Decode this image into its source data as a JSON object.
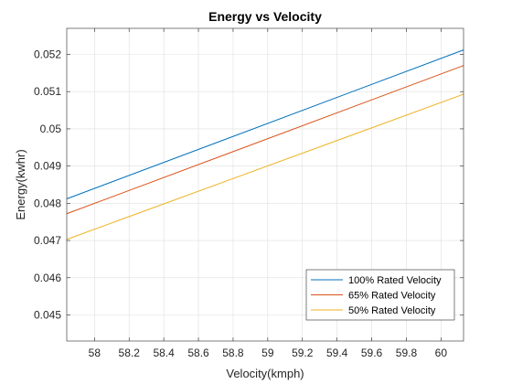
{
  "chart_data": {
    "type": "line",
    "title": "Energy vs Velocity",
    "xlabel": "Velocity(kmph)",
    "ylabel": "Energy(kwhr)",
    "xlim": [
      57.84,
      60.13
    ],
    "ylim": [
      0.0443,
      0.0527
    ],
    "xticks": [
      58,
      58.2,
      58.4,
      58.6,
      58.8,
      59,
      59.2,
      59.4,
      59.6,
      59.8,
      60
    ],
    "xtick_labels": [
      "58",
      "58.2",
      "58.4",
      "58.6",
      "58.8",
      "59",
      "59.2",
      "59.4",
      "59.6",
      "59.8",
      "60"
    ],
    "yticks": [
      0.045,
      0.046,
      0.047,
      0.048,
      0.049,
      0.05,
      0.051,
      0.052
    ],
    "ytick_labels": [
      "0.045",
      "0.046",
      "0.047",
      "0.048",
      "0.049",
      "0.05",
      "0.051",
      "0.052"
    ],
    "grid": true,
    "legend_position": "bottom-right",
    "series": [
      {
        "name": "100% Rated Velocity",
        "color": "#0072BD",
        "x": [
          57.84,
          60.13
        ],
        "y": [
          0.04812,
          0.05212
        ]
      },
      {
        "name": "65% Rated Velocity",
        "color": "#D95319",
        "x": [
          57.84,
          60.13
        ],
        "y": [
          0.04772,
          0.0517
        ]
      },
      {
        "name": "50% Rated Velocity",
        "color": "#EDB120",
        "x": [
          57.84,
          60.13
        ],
        "y": [
          0.04703,
          0.05093
        ]
      }
    ]
  }
}
